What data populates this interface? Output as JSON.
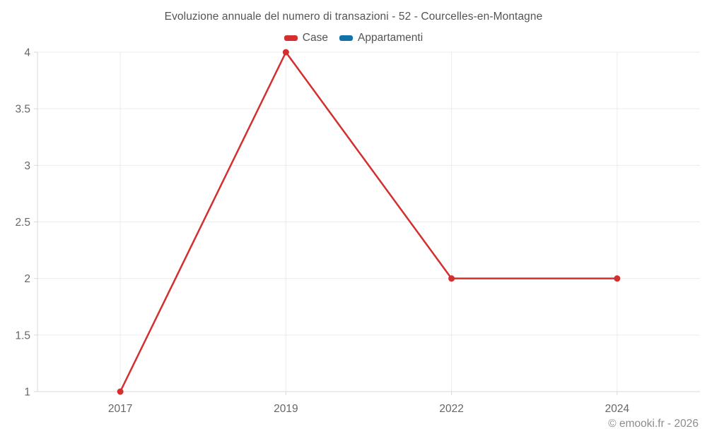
{
  "title": "Evoluzione annuale del numero di transazioni - 52 - Courcelles-en-Montagne",
  "copyright": "© emooki.fr - 2026",
  "colors": {
    "title_text": "#545454",
    "tick_text": "#666666",
    "axis_line": "#d8d8d8",
    "grid_line": "#ececec",
    "case_red": "#d32f2f",
    "appartamenti_blue": "#1273a8",
    "background": "#ffffff"
  },
  "chart_data": {
    "type": "line",
    "title": "Evoluzione annuale del numero di transazioni - 52 - Courcelles-en-Montagne",
    "categories": [
      "2017",
      "2019",
      "2022",
      "2024"
    ],
    "series": [
      {
        "name": "Case",
        "color": "#d32f2f",
        "values": [
          1,
          4,
          2,
          2
        ]
      },
      {
        "name": "Appartamenti",
        "color": "#1273a8",
        "values": []
      }
    ],
    "xlabel": "",
    "ylabel": "",
    "ylim": [
      1,
      4
    ],
    "yticks": [
      1,
      1.5,
      2,
      2.5,
      3,
      3.5,
      4
    ],
    "grid": true,
    "legend_position": "top",
    "marker": "circle"
  }
}
